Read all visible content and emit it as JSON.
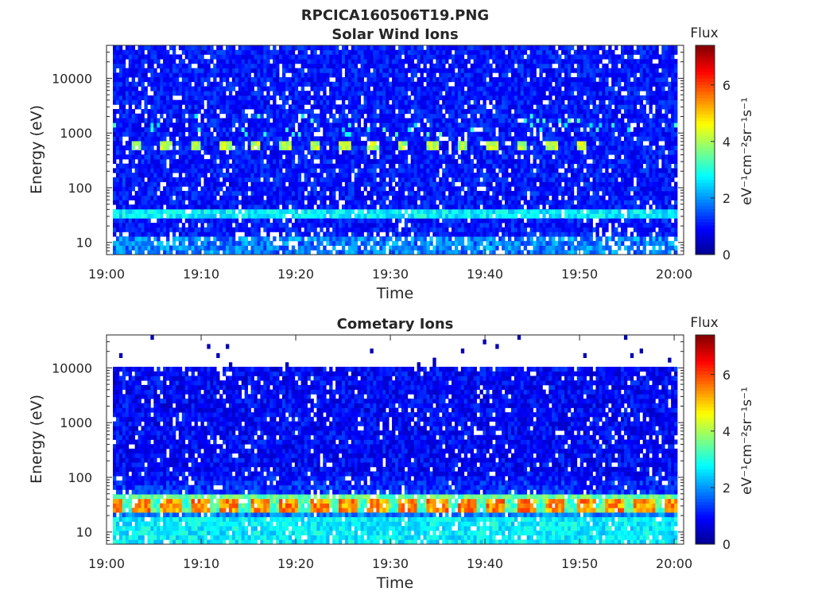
{
  "figure": {
    "title": "RPCICA160506T19.PNG"
  },
  "colors": {
    "colormap": [
      "#00008f",
      "#0000ff",
      "#0080ff",
      "#00ffff",
      "#80ff80",
      "#ffff00",
      "#ff8000",
      "#ff0000",
      "#800000"
    ],
    "missing": "#ffffff",
    "axis": "#262626"
  },
  "chart_data": [
    {
      "type": "heatmap",
      "title": "Solar Wind Ions",
      "xlabel": "Time",
      "ylabel": "Energy (eV)",
      "x_ticks": [
        "19:00",
        "19:10",
        "19:20",
        "19:30",
        "19:40",
        "19:50",
        "20:00"
      ],
      "x_range": [
        "19:00",
        "20:01"
      ],
      "y_scale": "log",
      "y_ticks": [
        "10",
        "100",
        "1000",
        "10000"
      ],
      "y_range": [
        6,
        40000
      ],
      "colorbar": {
        "label": "Flux",
        "unit_label": "eV⁻¹cm⁻²sr⁻¹s⁻¹",
        "ticks": [
          "0",
          "2",
          "4",
          "6"
        ],
        "range": [
          0,
          7.4
        ]
      },
      "features": [
        {
          "description_energy_eV": 620,
          "peak_flux": 4.6,
          "repeats": "every ~3 min"
        },
        {
          "description_energy_eV": 32,
          "peak_flux": 3.2
        }
      ]
    },
    {
      "type": "heatmap",
      "title": "Cometary Ions",
      "xlabel": "Time",
      "ylabel": "Energy (eV)",
      "x_ticks": [
        "19:00",
        "19:10",
        "19:20",
        "19:30",
        "19:40",
        "19:50",
        "20:00"
      ],
      "x_range": [
        "19:00",
        "20:01"
      ],
      "y_scale": "log",
      "y_ticks": [
        "10",
        "100",
        "1000",
        "10000"
      ],
      "y_range": [
        6,
        40000
      ],
      "colorbar": {
        "label": "Flux",
        "unit_label": "eV⁻¹cm⁻²sr⁻¹s⁻¹",
        "ticks": [
          "0",
          "2",
          "4",
          "6"
        ],
        "range": [
          0,
          7.4
        ]
      },
      "features": [
        {
          "description_energy_eV": 33,
          "peak_flux": 5.9,
          "repeats": "every ~3 min"
        },
        {
          "description_energy_eV": 15,
          "peak_flux": 3.0
        }
      ]
    }
  ]
}
